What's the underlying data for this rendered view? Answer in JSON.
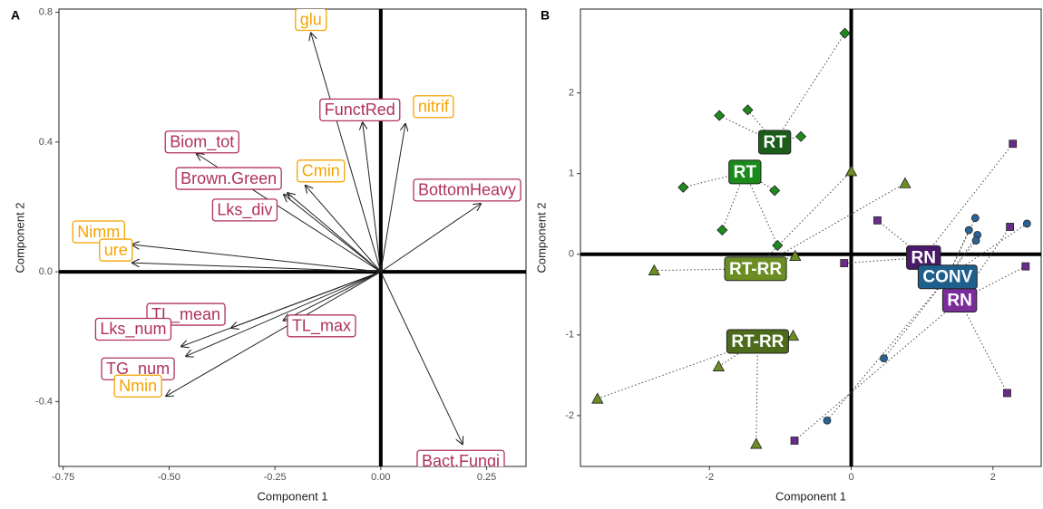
{
  "chart_data": [
    {
      "type": "biplot",
      "panel": "A",
      "x_label": "Component 1",
      "y_label": "Component 2",
      "xlim": [
        -0.76,
        0.343
      ],
      "ylim": [
        -0.6,
        0.81
      ],
      "xticks": [
        -0.75,
        {
          "value": -0.5,
          "label": "-0.50"
        },
        -0.25,
        {
          "value": 0,
          "label": "0.00"
        },
        0.25
      ],
      "yticks": [
        0.8,
        0.4,
        {
          "value": 0,
          "label": "0.0"
        },
        -0.4
      ],
      "arrows": [
        {
          "label": "glu",
          "x": -0.165,
          "y": 0.736,
          "color": "#f5a300"
        },
        {
          "label": "FunctRed",
          "x": -0.043,
          "y": 0.46,
          "color": "#b0305e"
        },
        {
          "label": "nitrif",
          "x": 0.058,
          "y": 0.456,
          "color": "#f5a300"
        },
        {
          "label": "Biom_tot",
          "x": -0.435,
          "y": 0.364,
          "color": "#b0305e"
        },
        {
          "label": "Brown.Green",
          "x": -0.22,
          "y": 0.243,
          "color": "#b0305e"
        },
        {
          "label": "Cmin",
          "x": -0.178,
          "y": 0.266,
          "color": "#f5a300"
        },
        {
          "label": "Lks_div",
          "x": -0.229,
          "y": 0.238,
          "color": "#b0305e"
        },
        {
          "label": "BottomHeavy",
          "x": 0.236,
          "y": 0.21,
          "color": "#b0305e"
        },
        {
          "label": "Nimm",
          "x": -0.587,
          "y": 0.084,
          "color": "#f5a300"
        },
        {
          "label": "ure",
          "x": -0.587,
          "y": 0.028,
          "color": "#f5a300"
        },
        {
          "label": "TL_mean",
          "x": -0.353,
          "y": -0.173,
          "color": "#b0305e"
        },
        {
          "label": "Lks_num",
          "x": -0.471,
          "y": -0.23,
          "color": "#b0305e"
        },
        {
          "label": "TG_num",
          "x": -0.46,
          "y": -0.26,
          "color": "#b0305e"
        },
        {
          "label": "Nmin",
          "x": -0.507,
          "y": -0.383,
          "color": "#f5a300"
        },
        {
          "label": "TL_max",
          "x": -0.23,
          "y": -0.15,
          "color": "#b0305e"
        },
        {
          "label": "Bact.Fungi",
          "x": 0.193,
          "y": -0.531,
          "color": "#b0305e"
        }
      ]
    },
    {
      "type": "scatter",
      "panel": "B",
      "x_label": "Component 1",
      "y_label": "Component 2",
      "xlim": [
        -3.82,
        2.68
      ],
      "ylim": [
        -2.63,
        3.04
      ],
      "xticks": [
        -2,
        0,
        2
      ],
      "yticks": [
        2,
        1,
        0,
        -1,
        -2
      ],
      "groups": [
        {
          "shape": "diamond",
          "color": "#1e8a1e",
          "x": [
            -0.09,
            -1.46,
            -1.86,
            -0.71,
            -2.37,
            -1.08,
            -1.82,
            -1.04
          ],
          "y": [
            2.74,
            1.79,
            1.72,
            1.46,
            0.83,
            0.79,
            0.3,
            0.11
          ],
          "labels": [
            {
              "text": "RT",
              "x": -1.08,
              "y": 1.39,
              "color": "#1a5e1a"
            },
            {
              "text": "RT",
              "x": -1.5,
              "y": 1.02,
              "color": "#1a8a1a"
            }
          ]
        },
        {
          "shape": "triangle",
          "color": "#6b8e23",
          "x": [
            0,
            0.76,
            -0.79,
            -2.78,
            -0.82,
            -1.87,
            -3.58,
            -1.34
          ],
          "y": [
            1.03,
            0.88,
            -0.02,
            -0.2,
            -1.01,
            -1.39,
            -1.79,
            -2.35
          ],
          "labels": [
            {
              "text": "RT-RR",
              "x": -1.35,
              "y": -0.18,
              "color": "#6b8e23"
            },
            {
              "text": "RT-RR",
              "x": -1.32,
              "y": -1.08,
              "color": "#4d6b1a"
            }
          ]
        },
        {
          "shape": "square",
          "color": "#6a2c8a",
          "x": [
            2.28,
            0.37,
            2.24,
            -0.1,
            2.46,
            2.2,
            -0.8
          ],
          "y": [
            1.37,
            0.42,
            0.34,
            -0.11,
            -0.15,
            -1.72,
            -2.31
          ],
          "labels": [
            {
              "text": "RN",
              "x": 1.02,
              "y": -0.04,
              "color": "#4a1a6a"
            },
            {
              "text": "RN",
              "x": 1.53,
              "y": -0.57,
              "color": "#7a2c9a"
            }
          ]
        },
        {
          "shape": "circle",
          "color": "#2a6496",
          "x": [
            1.75,
            2.48,
            1.66,
            1.78,
            1.76,
            0.46,
            -0.34
          ],
          "y": [
            0.45,
            0.38,
            0.3,
            0.24,
            0.17,
            -1.29,
            -2.06
          ],
          "labels": [
            {
              "text": "CONV",
              "x": 1.36,
              "y": -0.28,
              "color": "#1f5f8b"
            }
          ]
        }
      ]
    }
  ]
}
